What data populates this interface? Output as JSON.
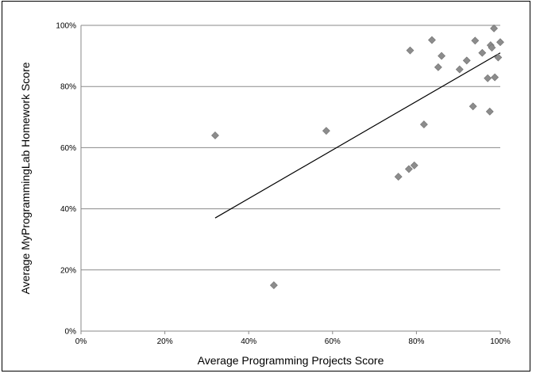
{
  "chart_data": {
    "type": "scatter",
    "title": "",
    "xlabel": "Average Programming Projects Score",
    "ylabel": "Average MyProgrammingLab Homework Score",
    "xlim": [
      0,
      1
    ],
    "ylim": [
      0,
      1
    ],
    "x_ticks": [
      "0%",
      "20%",
      "40%",
      "60%",
      "80%",
      "100%"
    ],
    "y_ticks": [
      "0%",
      "20%",
      "40%",
      "60%",
      "80%",
      "100%"
    ],
    "grid": "horizontal",
    "legend": "none",
    "marker_color": "#8c8c8c",
    "trendline_color": "#000000",
    "points": [
      {
        "x": 0.32,
        "y": 0.64
      },
      {
        "x": 0.46,
        "y": 0.15
      },
      {
        "x": 0.585,
        "y": 0.655
      },
      {
        "x": 0.757,
        "y": 0.505
      },
      {
        "x": 0.782,
        "y": 0.53
      },
      {
        "x": 0.795,
        "y": 0.542
      },
      {
        "x": 0.785,
        "y": 0.918
      },
      {
        "x": 0.818,
        "y": 0.676
      },
      {
        "x": 0.837,
        "y": 0.952
      },
      {
        "x": 0.852,
        "y": 0.863
      },
      {
        "x": 0.86,
        "y": 0.9
      },
      {
        "x": 0.903,
        "y": 0.856
      },
      {
        "x": 0.92,
        "y": 0.885
      },
      {
        "x": 0.935,
        "y": 0.735
      },
      {
        "x": 0.94,
        "y": 0.95
      },
      {
        "x": 0.957,
        "y": 0.91
      },
      {
        "x": 0.97,
        "y": 0.827
      },
      {
        "x": 0.975,
        "y": 0.718
      },
      {
        "x": 0.977,
        "y": 0.935
      },
      {
        "x": 0.98,
        "y": 0.927
      },
      {
        "x": 0.985,
        "y": 0.99
      },
      {
        "x": 0.987,
        "y": 0.83
      },
      {
        "x": 0.995,
        "y": 0.895
      },
      {
        "x": 1.0,
        "y": 0.945
      }
    ],
    "trendline": {
      "x": [
        0.32,
        1.0
      ],
      "y": [
        0.37,
        0.91
      ]
    }
  }
}
